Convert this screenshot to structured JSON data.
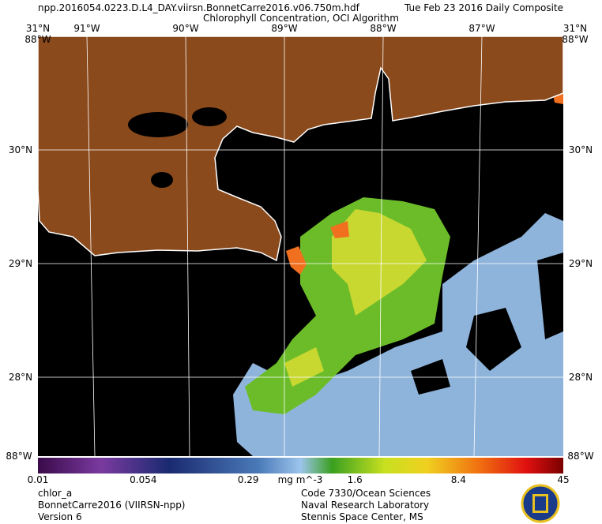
{
  "header": {
    "filename": "npp.2016054.0223.D.L4_DAY.viirsn.BonnetCarre2016.v06.750m.hdf",
    "date": "Tue Feb 23 2016 Daily Composite",
    "subtitle": "Chlorophyll Concentration, OCI Algorithm"
  },
  "map": {
    "lon_labels": [
      "91°W",
      "90°W",
      "89°W",
      "88°W",
      "87°W"
    ],
    "lat_labels": [
      "31°N",
      "30°N",
      "29°N",
      "28°N"
    ],
    "corner_label": "88°W"
  },
  "colorbar": {
    "ticks": [
      0.01,
      0.054,
      0.29,
      1.6,
      8.4,
      45
    ],
    "unit": "mg m^-3"
  },
  "footer": {
    "left": [
      "chlor_a",
      "BonnetCarre2016 (VIIRSN-npp)",
      "Version 6"
    ],
    "right": [
      "Code 7330/Ocean Sciences",
      "Naval Research Laboratory",
      "Stennis Space Center, MS"
    ]
  }
}
